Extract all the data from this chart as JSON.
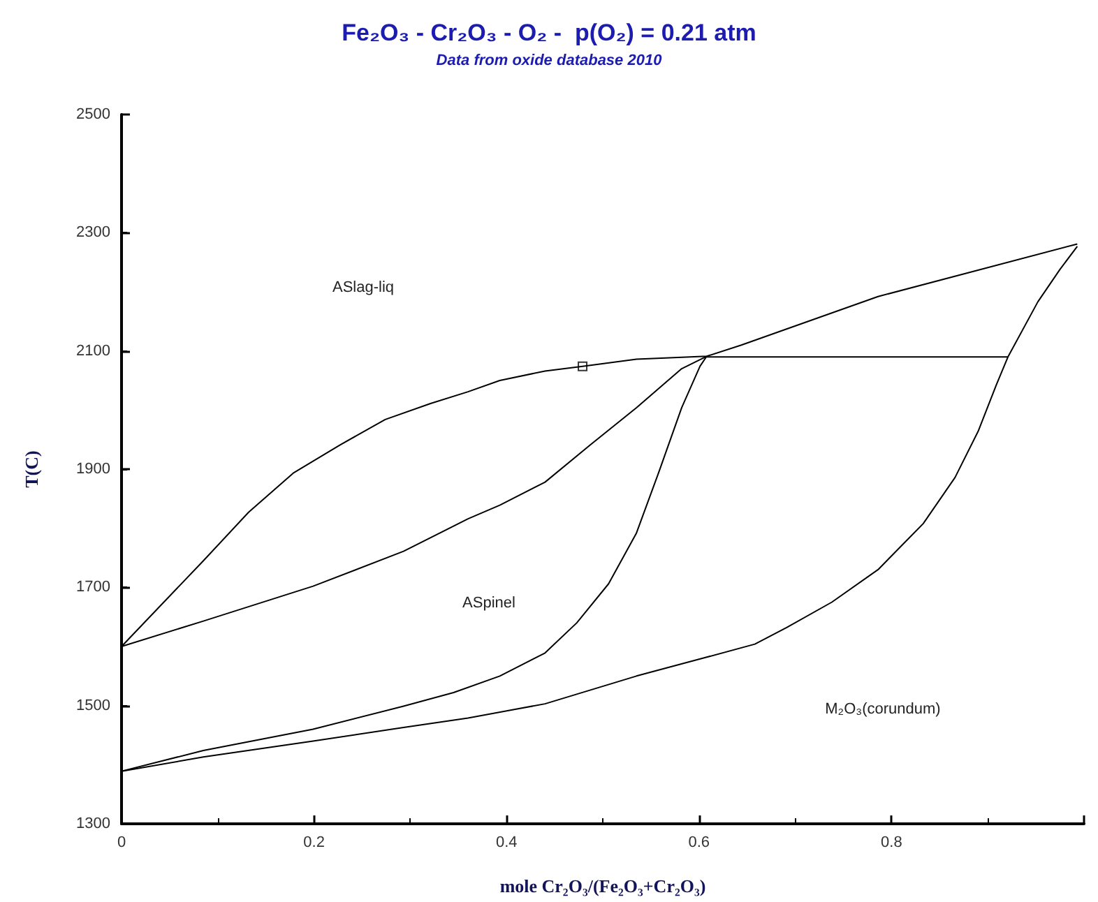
{
  "chart_data": {
    "type": "line",
    "title": "Fe₂O₃ - Cr₂O₃ - O₂ -  p(O₂) = 0.21 atm",
    "subtitle": "Data from oxide database 2010",
    "xlabel": "mole Cr₂O₃/(Fe₂O₃+Cr₂O₃)",
    "ylabel": "T(C)",
    "xlim": [
      0,
      1
    ],
    "xticks": [
      0,
      0.2,
      0.4,
      0.6,
      0.8,
      {
        "value": 1,
        "label": null
      }
    ],
    "ylim": [
      1300,
      2500
    ],
    "yticks": [
      1300,
      1500,
      1700,
      1900,
      2100,
      2300,
      2500
    ],
    "grid": false,
    "marker": "none",
    "series": [
      {
        "color": "#000000",
        "x": [
          0,
          0.085,
          0.132,
          0.179,
          0.227,
          0.274,
          0.321,
          0.36,
          0.393,
          0.44,
          0.479,
          0.535,
          0.608,
          0.644,
          0.786,
          0.993
        ],
        "values": [
          1600,
          1745,
          1827,
          1894,
          1941,
          1984,
          2011,
          2031,
          2050,
          2066,
          2074,
          2086,
          2091,
          2110,
          2192,
          2281
        ]
      },
      {
        "color": "#000000",
        "x": [
          0,
          0.085,
          0.199,
          0.293,
          0.36,
          0.393,
          0.44,
          0.487,
          0.535,
          0.582,
          0.608
        ],
        "values": [
          1600,
          1643,
          1702,
          1761,
          1816,
          1839,
          1878,
          1941,
          2004,
          2070,
          2091
        ]
      },
      {
        "color": "#000000",
        "x": [
          0,
          0.085,
          0.199,
          0.293,
          0.345,
          0.393,
          0.44,
          0.473,
          0.506,
          0.535,
          0.558,
          0.582,
          0.601,
          0.608
        ],
        "values": [
          1389,
          1424,
          1460,
          1499,
          1522,
          1550,
          1589,
          1640,
          1706,
          1792,
          1894,
          2004,
          2074,
          2091
        ]
      },
      {
        "color": "#000000",
        "x": [
          0,
          0.085,
          0.199,
          0.293,
          0.36,
          0.44,
          0.535,
          0.606,
          0.658,
          0.691,
          0.738,
          0.786,
          0.833,
          0.866,
          0.89,
          0.909,
          0.921,
          0.952,
          0.975,
          0.993
        ],
        "values": [
          1389,
          1413,
          1440,
          1463,
          1479,
          1503,
          1550,
          1581,
          1604,
          1632,
          1675,
          1730,
          1808,
          1886,
          1964,
          2043,
          2090,
          2183,
          2238,
          2277
        ]
      },
      {
        "color": "#000000",
        "x": [
          0.608,
          0.921
        ],
        "values": [
          2090,
          2090
        ]
      },
      {
        "type": "scatter",
        "marker": "square",
        "color": "#000000",
        "x": [
          0.479
        ],
        "values": [
          2074
        ]
      }
    ],
    "annotations": [
      "ASlag-liq",
      "ASpinel",
      "M₂O₃(corundum)"
    ]
  }
}
